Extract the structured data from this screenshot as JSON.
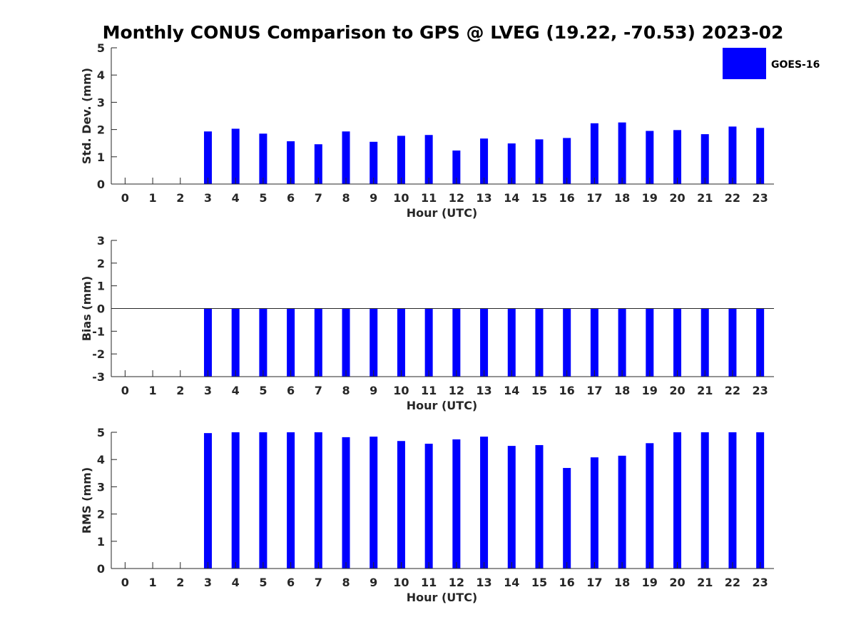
{
  "title": "Monthly CONUS Comparison to GPS @ LVEG (19.22, -70.53) 2023-02",
  "legend": {
    "label": "GOES-16",
    "color": "#0000ff"
  },
  "bar_color": "#0000ff",
  "chart_data": [
    {
      "type": "bar",
      "title": "",
      "xlabel": "Hour (UTC)",
      "ylabel": "Std. Dev. (mm)",
      "ylim": [
        0,
        5
      ],
      "yticks": [
        0,
        1,
        2,
        3,
        4,
        5
      ],
      "categories": [
        0,
        1,
        2,
        3,
        4,
        5,
        6,
        7,
        8,
        9,
        10,
        11,
        12,
        13,
        14,
        15,
        16,
        17,
        18,
        19,
        20,
        21,
        22,
        23
      ],
      "series": [
        {
          "name": "GOES-16",
          "values": [
            null,
            null,
            null,
            1.93,
            2.03,
            1.85,
            1.57,
            1.46,
            1.93,
            1.55,
            1.77,
            1.8,
            1.23,
            1.67,
            1.49,
            1.64,
            1.69,
            2.23,
            2.26,
            1.95,
            1.98,
            1.83,
            2.11,
            2.06
          ]
        }
      ]
    },
    {
      "type": "bar",
      "title": "",
      "xlabel": "Hour (UTC)",
      "ylabel": "Bias (mm)",
      "ylim": [
        -3,
        3
      ],
      "yticks": [
        -3,
        -2,
        -1,
        0,
        1,
        2,
        3
      ],
      "zero_line": true,
      "categories": [
        0,
        1,
        2,
        3,
        4,
        5,
        6,
        7,
        8,
        9,
        10,
        11,
        12,
        13,
        14,
        15,
        16,
        17,
        18,
        19,
        20,
        21,
        22,
        23
      ],
      "series": [
        {
          "name": "GOES-16",
          "values": [
            null,
            null,
            null,
            -3,
            -3,
            -3,
            -3,
            -3,
            -3,
            -3,
            -3,
            -3,
            -3,
            -3,
            -3,
            -3,
            -3,
            -3,
            -3,
            -3,
            -3,
            -3,
            -3,
            -3
          ]
        }
      ]
    },
    {
      "type": "bar",
      "title": "",
      "xlabel": "Hour (UTC)",
      "ylabel": "RMS (mm)",
      "ylim": [
        0,
        5
      ],
      "yticks": [
        0,
        1,
        2,
        3,
        4,
        5
      ],
      "categories": [
        0,
        1,
        2,
        3,
        4,
        5,
        6,
        7,
        8,
        9,
        10,
        11,
        12,
        13,
        14,
        15,
        16,
        17,
        18,
        19,
        20,
        21,
        22,
        23
      ],
      "series": [
        {
          "name": "GOES-16",
          "values": [
            null,
            null,
            null,
            4.97,
            5,
            5,
            5,
            5,
            4.82,
            4.84,
            4.68,
            4.58,
            4.74,
            4.84,
            4.5,
            4.53,
            3.69,
            4.08,
            4.14,
            4.6,
            5,
            5,
            5,
            5
          ]
        }
      ]
    }
  ]
}
